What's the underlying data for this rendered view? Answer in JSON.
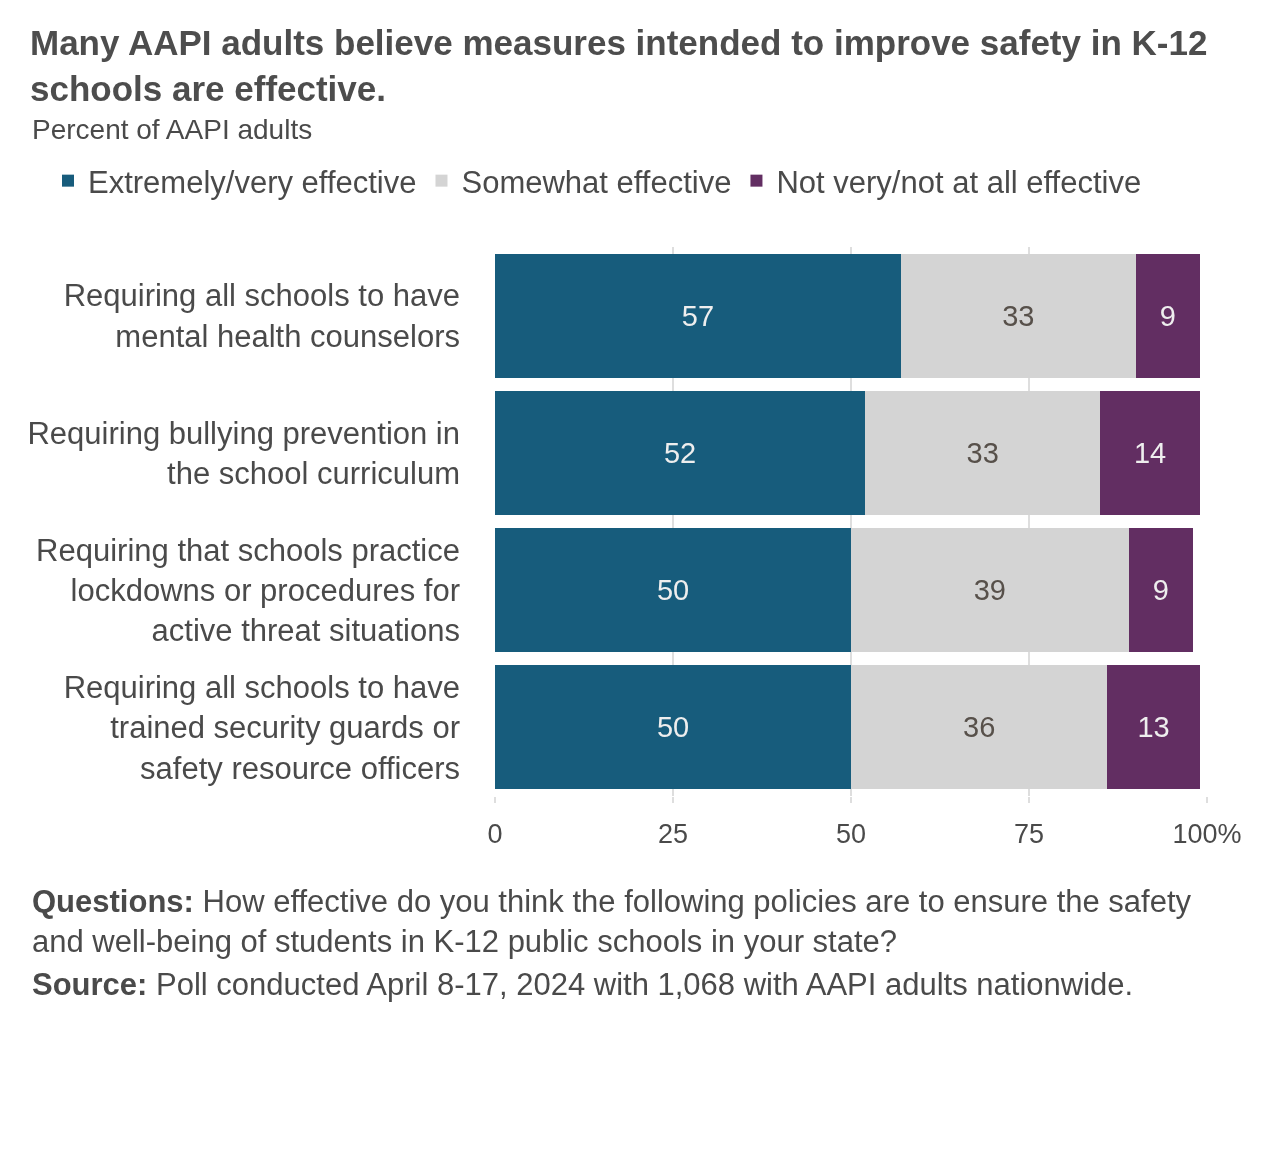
{
  "chart_data": {
    "type": "bar",
    "orientation": "horizontal",
    "stacked": true,
    "title": "Many AAPI adults believe measures intended to improve safety in K-12 schools are effective.",
    "subtitle": "Percent of AAPI adults",
    "categories": [
      "Requiring all schools to have mental health counselors",
      "Requiring bullying prevention in the school curriculum",
      "Requiring that schools practice lockdowns or procedures for active threat situations",
      "Requiring all schools to have trained security guards or safety resource officers"
    ],
    "series": [
      {
        "name": "Extremely/very effective",
        "color": "#175c7c",
        "values": [
          57,
          52,
          50,
          50
        ]
      },
      {
        "name": "Somewhat effective",
        "color": "#d4d4d4",
        "values": [
          33,
          33,
          39,
          36
        ]
      },
      {
        "name": "Not very/not at all effective",
        "color": "#622e62",
        "values": [
          9,
          14,
          9,
          13
        ]
      }
    ],
    "xlim": [
      0,
      100
    ],
    "xticks": [
      0,
      25,
      50,
      75,
      {
        "value": 100,
        "label": "100%"
      }
    ],
    "grid": "x",
    "legend": "top",
    "data_labels": true,
    "annotations": [
      "Questions: How effective do you think the following policies are to ensure the safety and well-being of students in K-12 public schools in your state?",
      "Source: Poll conducted April 8-17, 2024 with 1,068 with AAPI adults nationwide."
    ]
  }
}
